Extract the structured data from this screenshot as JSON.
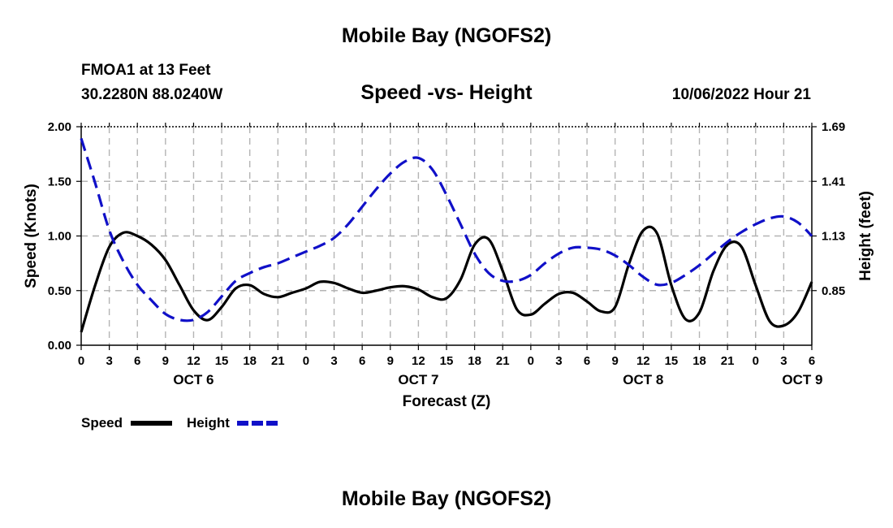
{
  "header": {
    "title": "Mobile Bay (NGOFS2)",
    "station": "FMOA1 at 13 Feet",
    "coordinates": "30.2280N  88.0240W",
    "subtitle": "Speed -vs- Height",
    "datetime": "10/06/2022 Hour 21"
  },
  "footer": {
    "title": "Mobile Bay (NGOFS2)"
  },
  "chart_data": {
    "type": "line",
    "title": "Speed -vs- Height",
    "xlabel": "Forecast (Z)",
    "ylabel": "Speed (Knots)",
    "y2label": "Height (feet)",
    "xlim": [
      0,
      78
    ],
    "ylim": [
      0,
      2.0
    ],
    "y2lim": [
      0.57,
      1.69
    ],
    "grid": true,
    "x_ticks": [
      0,
      3,
      6,
      9,
      12,
      15,
      18,
      21,
      24,
      27,
      30,
      33,
      36,
      39,
      42,
      45,
      48,
      51,
      54,
      57,
      60,
      63,
      66,
      69,
      72,
      75,
      78
    ],
    "x_tick_labels": [
      "0",
      "3",
      "6",
      "9",
      "12",
      "15",
      "18",
      "21",
      "0",
      "3",
      "6",
      "9",
      "12",
      "15",
      "18",
      "21",
      "0",
      "3",
      "6",
      "9",
      "12",
      "15",
      "18",
      "21",
      "0",
      "3",
      "6"
    ],
    "day_labels": [
      {
        "x": 12,
        "label": "OCT 6"
      },
      {
        "x": 36,
        "label": "OCT 7"
      },
      {
        "x": 60,
        "label": "OCT 8"
      },
      {
        "x": 77,
        "label": "OCT 9"
      }
    ],
    "y_ticks": [
      0.0,
      0.5,
      1.0,
      1.5,
      2.0
    ],
    "y_tick_labels": [
      "0.00",
      "0.50",
      "1.00",
      "1.50",
      "2.00"
    ],
    "y2_ticks": [
      0.85,
      1.13,
      1.41,
      1.69
    ],
    "y2_tick_labels": [
      "0.85",
      "1.13",
      "1.41",
      "1.69"
    ],
    "legend": [
      {
        "name": "Speed",
        "color": "#000000",
        "style": "solid"
      },
      {
        "name": "Height",
        "color": "#1010c8",
        "style": "dashed"
      }
    ],
    "legend_position": "bottom-left",
    "series": [
      {
        "name": "Speed",
        "axis": "left",
        "color": "#000000",
        "style": "solid",
        "x": [
          0,
          1.5,
          3,
          4.5,
          6,
          7.5,
          9,
          10.5,
          12,
          13.5,
          15,
          16.5,
          18,
          19.5,
          21,
          22.5,
          24,
          25.5,
          27,
          28.5,
          30,
          31.5,
          33,
          34.5,
          36,
          37.5,
          39,
          40.5,
          42,
          43.5,
          45,
          46.5,
          48,
          49.5,
          51,
          52.5,
          54,
          55.5,
          57,
          58.5,
          60,
          61.5,
          63,
          64.5,
          66,
          67.5,
          69,
          70.5,
          72,
          73.5,
          75,
          76.5,
          78
        ],
        "values": [
          0.12,
          0.55,
          0.9,
          1.03,
          1.0,
          0.92,
          0.78,
          0.55,
          0.32,
          0.23,
          0.35,
          0.52,
          0.55,
          0.47,
          0.44,
          0.48,
          0.52,
          0.58,
          0.57,
          0.52,
          0.48,
          0.5,
          0.53,
          0.54,
          0.51,
          0.44,
          0.43,
          0.6,
          0.92,
          0.97,
          0.68,
          0.33,
          0.28,
          0.38,
          0.47,
          0.48,
          0.4,
          0.31,
          0.35,
          0.75,
          1.05,
          1.02,
          0.55,
          0.24,
          0.3,
          0.68,
          0.92,
          0.9,
          0.55,
          0.22,
          0.18,
          0.3,
          0.58
        ]
      },
      {
        "name": "Height",
        "axis": "right",
        "color": "#1010c8",
        "style": "dashed",
        "x": [
          0,
          1.5,
          3,
          4.5,
          6,
          7.5,
          9,
          10.5,
          12,
          13.5,
          15,
          16.5,
          18,
          19.5,
          21,
          22.5,
          24,
          25.5,
          27,
          28.5,
          30,
          31.5,
          33,
          34.5,
          36,
          37.5,
          39,
          40.5,
          42,
          43.5,
          45,
          46.5,
          48,
          49.5,
          51,
          52.5,
          54,
          55.5,
          57,
          58.5,
          60,
          61.5,
          63,
          64.5,
          66,
          67.5,
          69,
          70.5,
          72,
          73.5,
          75,
          76.5,
          78
        ],
        "values": [
          1.63,
          1.4,
          1.16,
          1.0,
          0.88,
          0.8,
          0.73,
          0.7,
          0.7,
          0.74,
          0.82,
          0.9,
          0.94,
          0.97,
          0.99,
          1.02,
          1.05,
          1.08,
          1.12,
          1.19,
          1.28,
          1.37,
          1.45,
          1.51,
          1.53,
          1.47,
          1.34,
          1.19,
          1.04,
          0.94,
          0.9,
          0.9,
          0.93,
          0.99,
          1.04,
          1.07,
          1.07,
          1.06,
          1.03,
          0.98,
          0.92,
          0.88,
          0.89,
          0.93,
          0.98,
          1.04,
          1.1,
          1.15,
          1.19,
          1.22,
          1.23,
          1.2,
          1.13
        ]
      }
    ]
  }
}
